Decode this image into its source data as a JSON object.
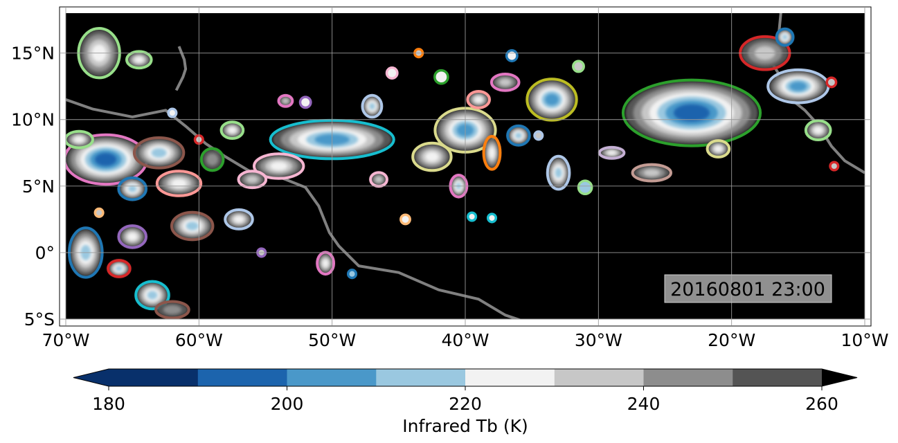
{
  "map": {
    "lon_range": [
      -70,
      -10
    ],
    "lat_range": [
      -5,
      18
    ],
    "x_ticks": [
      {
        "value": -70,
        "label": "70°W"
      },
      {
        "value": -60,
        "label": "60°W"
      },
      {
        "value": -50,
        "label": "50°W"
      },
      {
        "value": -40,
        "label": "40°W"
      },
      {
        "value": -30,
        "label": "30°W"
      },
      {
        "value": -20,
        "label": "20°W"
      },
      {
        "value": -10,
        "label": "10°W"
      }
    ],
    "y_ticks": [
      {
        "value": 15,
        "label": "15°N"
      },
      {
        "value": 10,
        "label": "10°N"
      },
      {
        "value": 5,
        "label": "5°N"
      },
      {
        "value": 0,
        "label": "0°"
      },
      {
        "value": -5,
        "label": "5°S"
      }
    ],
    "grid": true,
    "background_color": "#000000",
    "coastline_color": "#808080",
    "timestamp": "20160801 23:00"
  },
  "colorbar": {
    "label": "Infrared Tb (K)",
    "ticks": [
      {
        "value": 180,
        "label": "180"
      },
      {
        "value": 200,
        "label": "200"
      },
      {
        "value": 220,
        "label": "220"
      },
      {
        "value": 240,
        "label": "240"
      },
      {
        "value": 260,
        "label": "260"
      }
    ],
    "range": [
      180,
      260
    ],
    "extend": "both",
    "bins": [
      {
        "from": 180,
        "to": 190,
        "color": "#08306b"
      },
      {
        "from": 190,
        "to": 200,
        "color": "#1c64ad"
      },
      {
        "from": 200,
        "to": 210,
        "color": "#4a98c9"
      },
      {
        "from": 210,
        "to": 220,
        "color": "#9ac8e0"
      },
      {
        "from": 220,
        "to": 230,
        "color": "#f2f2f2"
      },
      {
        "from": 230,
        "to": 240,
        "color": "#c7c7c7"
      },
      {
        "from": 240,
        "to": 250,
        "color": "#8d8d8d"
      },
      {
        "from": 250,
        "to": 260,
        "color": "#545454"
      }
    ],
    "under_color": "#08306b",
    "over_color": "#000000"
  },
  "features": {
    "cloud_systems": [
      {
        "lon": -67,
        "lat": 7.0,
        "rx": 3.0,
        "ry": 1.8,
        "min_tb": 195,
        "outline": "#e377c2"
      },
      {
        "lon": -63,
        "lat": 7.5,
        "rx": 1.8,
        "ry": 1.1,
        "min_tb": 215,
        "outline": "#8c564b"
      },
      {
        "lon": -61.5,
        "lat": 5.2,
        "rx": 1.6,
        "ry": 0.9,
        "min_tb": 218,
        "outline": "#ff9896"
      },
      {
        "lon": -67.5,
        "lat": 15.0,
        "rx": 1.5,
        "ry": 1.8,
        "min_tb": 222,
        "outline": "#98df8a"
      },
      {
        "lon": -65,
        "lat": 1.2,
        "rx": 1.0,
        "ry": 0.8,
        "min_tb": 218,
        "outline": "#9467bd"
      },
      {
        "lon": -60.5,
        "lat": 2.0,
        "rx": 1.5,
        "ry": 1.0,
        "min_tb": 210,
        "outline": "#8c564b"
      },
      {
        "lon": -68.5,
        "lat": 0.0,
        "rx": 1.2,
        "ry": 1.8,
        "min_tb": 210,
        "outline": "#1f77b4"
      },
      {
        "lon": -63.5,
        "lat": -3.2,
        "rx": 1.2,
        "ry": 1.0,
        "min_tb": 212,
        "outline": "#17becf"
      },
      {
        "lon": -50,
        "lat": 8.5,
        "rx": 4.5,
        "ry": 1.4,
        "min_tb": 198,
        "outline": "#17becf"
      },
      {
        "lon": -54,
        "lat": 6.5,
        "rx": 1.8,
        "ry": 0.9,
        "min_tb": 225,
        "outline": "#f7b6d2"
      },
      {
        "lon": -40,
        "lat": 9.2,
        "rx": 2.2,
        "ry": 1.6,
        "min_tb": 196,
        "outline": "#dbdb8d"
      },
      {
        "lon": -33.5,
        "lat": 11.5,
        "rx": 1.8,
        "ry": 1.5,
        "min_tb": 200,
        "outline": "#bcbd22"
      },
      {
        "lon": -23,
        "lat": 10.5,
        "rx": 5.0,
        "ry": 2.4,
        "min_tb": 193,
        "outline": "#2ca02c"
      },
      {
        "lon": -15,
        "lat": 12.5,
        "rx": 2.2,
        "ry": 1.2,
        "min_tb": 200,
        "outline": "#aec7e8"
      },
      {
        "lon": -17.5,
        "lat": 15.0,
        "rx": 1.8,
        "ry": 1.2,
        "min_tb": 228,
        "outline": "#d62728"
      },
      {
        "lon": -40.5,
        "lat": 5.0,
        "rx": 0.6,
        "ry": 0.8,
        "min_tb": 210,
        "outline": "#e377c2"
      },
      {
        "lon": -33,
        "lat": 6.0,
        "rx": 0.8,
        "ry": 1.2,
        "min_tb": 212,
        "outline": "#aec7e8"
      },
      {
        "lon": -38,
        "lat": 7.5,
        "rx": 0.6,
        "ry": 1.2,
        "min_tb": 225,
        "outline": "#ff7f0e"
      },
      {
        "lon": -47,
        "lat": 11.0,
        "rx": 0.7,
        "ry": 0.8,
        "min_tb": 215,
        "outline": "#aec7e8"
      },
      {
        "lon": -56,
        "lat": 5.5,
        "rx": 1.0,
        "ry": 0.6,
        "min_tb": 226,
        "outline": "#f7b6d2"
      },
      {
        "lon": -50.5,
        "lat": -0.8,
        "rx": 0.6,
        "ry": 0.8,
        "min_tb": 224,
        "outline": "#e377c2"
      },
      {
        "lon": -13.5,
        "lat": 9.2,
        "rx": 0.9,
        "ry": 0.7,
        "min_tb": 218,
        "outline": "#98df8a"
      },
      {
        "lon": -29,
        "lat": 7.5,
        "rx": 0.9,
        "ry": 0.4,
        "min_tb": 222,
        "outline": "#c5b0d5"
      },
      {
        "lon": -26,
        "lat": 6.0,
        "rx": 1.4,
        "ry": 0.6,
        "min_tb": 235,
        "outline": "#c49c94"
      },
      {
        "lon": -21,
        "lat": 7.8,
        "rx": 0.8,
        "ry": 0.6,
        "min_tb": 220,
        "outline": "#dbdb8d"
      },
      {
        "lon": -42.5,
        "lat": 7.2,
        "rx": 1.4,
        "ry": 1.0,
        "min_tb": 222,
        "outline": "#dbdb8d"
      },
      {
        "lon": -36,
        "lat": 8.8,
        "rx": 0.8,
        "ry": 0.7,
        "min_tb": 208,
        "outline": "#1f77b4"
      },
      {
        "lon": -37,
        "lat": 12.8,
        "rx": 1.0,
        "ry": 0.6,
        "min_tb": 226,
        "outline": "#e377c2"
      },
      {
        "lon": -39,
        "lat": 11.5,
        "rx": 0.8,
        "ry": 0.6,
        "min_tb": 222,
        "outline": "#ff9896"
      },
      {
        "lon": -57.5,
        "lat": 9.2,
        "rx": 0.8,
        "ry": 0.6,
        "min_tb": 225,
        "outline": "#98df8a"
      },
      {
        "lon": -65,
        "lat": 4.8,
        "rx": 1.0,
        "ry": 0.8,
        "min_tb": 212,
        "outline": "#1f77b4"
      },
      {
        "lon": -57,
        "lat": 2.5,
        "rx": 1.0,
        "ry": 0.7,
        "min_tb": 218,
        "outline": "#aec7e8"
      },
      {
        "lon": -66,
        "lat": -1.2,
        "rx": 0.8,
        "ry": 0.6,
        "min_tb": 215,
        "outline": "#d62728"
      },
      {
        "lon": -62,
        "lat": -4.3,
        "rx": 1.2,
        "ry": 0.6,
        "min_tb": 238,
        "outline": "#8c564b"
      },
      {
        "lon": -64.5,
        "lat": 14.5,
        "rx": 0.9,
        "ry": 0.6,
        "min_tb": 225,
        "outline": "#98df8a"
      },
      {
        "lon": -69,
        "lat": 8.5,
        "rx": 1.0,
        "ry": 0.6,
        "min_tb": 225,
        "outline": "#98df8a"
      },
      {
        "lon": -59,
        "lat": 7.0,
        "rx": 0.8,
        "ry": 0.8,
        "min_tb": 238,
        "outline": "#2ca02c"
      },
      {
        "lon": -16,
        "lat": 16.2,
        "rx": 0.6,
        "ry": 0.6,
        "min_tb": 215,
        "outline": "#1f77b4"
      },
      {
        "lon": -46.5,
        "lat": 5.5,
        "rx": 0.6,
        "ry": 0.5,
        "min_tb": 232,
        "outline": "#f7b6d2"
      },
      {
        "lon": -53.5,
        "lat": 11.4,
        "rx": 0.5,
        "ry": 0.4,
        "min_tb": 228,
        "outline": "#e377c2"
      }
    ],
    "small_cells": [
      {
        "lon": -44.5,
        "lat": 2.5,
        "r": 0.35,
        "tb": 228,
        "outline": "#ffbb78"
      },
      {
        "lon": -38,
        "lat": 2.6,
        "r": 0.3,
        "tb": 220,
        "outline": "#17becf"
      },
      {
        "lon": -39.5,
        "lat": 2.7,
        "r": 0.3,
        "tb": 225,
        "outline": "#17becf"
      },
      {
        "lon": -48.5,
        "lat": -1.6,
        "r": 0.3,
        "tb": 212,
        "outline": "#1f77b4"
      },
      {
        "lon": -55.3,
        "lat": 0.0,
        "r": 0.3,
        "tb": 232,
        "outline": "#9467bd"
      },
      {
        "lon": -31,
        "lat": 4.9,
        "r": 0.5,
        "tb": 215,
        "outline": "#98df8a"
      },
      {
        "lon": -36.5,
        "lat": 14.8,
        "r": 0.4,
        "tb": 222,
        "outline": "#1f77b4"
      },
      {
        "lon": -43.5,
        "lat": 15.0,
        "r": 0.3,
        "tb": 230,
        "outline": "#ff7f0e"
      },
      {
        "lon": -31.5,
        "lat": 14.0,
        "r": 0.4,
        "tb": 232,
        "outline": "#98df8a"
      },
      {
        "lon": -12.3,
        "lat": 6.5,
        "r": 0.3,
        "tb": 238,
        "outline": "#d62728"
      },
      {
        "lon": -12.5,
        "lat": 12.8,
        "r": 0.35,
        "tb": 235,
        "outline": "#d62728"
      },
      {
        "lon": -52,
        "lat": 11.3,
        "r": 0.4,
        "tb": 224,
        "outline": "#9467bd"
      },
      {
        "lon": -60,
        "lat": 8.5,
        "r": 0.3,
        "tb": 235,
        "outline": "#d62728"
      },
      {
        "lon": -41.8,
        "lat": 13.2,
        "r": 0.5,
        "tb": 226,
        "outline": "#2ca02c"
      },
      {
        "lon": -45.5,
        "lat": 13.5,
        "r": 0.4,
        "tb": 228,
        "outline": "#f7b6d2"
      },
      {
        "lon": -34.5,
        "lat": 8.8,
        "r": 0.3,
        "tb": 230,
        "outline": "#aec7e8"
      },
      {
        "lon": -62,
        "lat": 10.5,
        "r": 0.3,
        "tb": 225,
        "outline": "#aec7e8"
      },
      {
        "lon": -67.5,
        "lat": 3.0,
        "r": 0.3,
        "tb": 232,
        "outline": "#ffbb78"
      }
    ],
    "coastlines": [
      {
        "name": "south-america-coast",
        "points": [
          [
            -70,
            11.5
          ],
          [
            -68,
            10.8
          ],
          [
            -65,
            10.2
          ],
          [
            -62.5,
            10.7
          ],
          [
            -61,
            9.5
          ],
          [
            -59.5,
            8.2
          ],
          [
            -58,
            7.2
          ],
          [
            -56,
            6.0
          ],
          [
            -54,
            5.7
          ],
          [
            -52,
            4.9
          ],
          [
            -51,
            3.5
          ],
          [
            -50.2,
            1.5
          ],
          [
            -49.5,
            0.5
          ],
          [
            -48,
            -1.0
          ],
          [
            -45,
            -1.5
          ],
          [
            -42,
            -2.8
          ],
          [
            -39,
            -3.5
          ],
          [
            -37,
            -4.7
          ],
          [
            -35.2,
            -5.3
          ],
          [
            -35,
            -5.6
          ]
        ]
      },
      {
        "name": "africa-coast",
        "points": [
          [
            -17.5,
            21.0
          ],
          [
            -17,
            19.0
          ],
          [
            -16.3,
            18.0
          ],
          [
            -16.5,
            16.0
          ],
          [
            -17.3,
            14.8
          ],
          [
            -16.5,
            13.5
          ],
          [
            -16.7,
            12.5
          ],
          [
            -15.5,
            11.5
          ],
          [
            -14.5,
            10.7
          ],
          [
            -13.5,
            9.6
          ],
          [
            -12.5,
            8.0
          ],
          [
            -11.5,
            6.9
          ],
          [
            -10,
            6.0
          ]
        ]
      },
      {
        "name": "caribbean-islands",
        "points": [
          [
            -61.5,
            15.5
          ],
          [
            -61.1,
            14.5
          ],
          [
            -61,
            13.8
          ],
          [
            -61.2,
            13.2
          ],
          [
            -61.7,
            12.2
          ]
        ]
      }
    ]
  }
}
